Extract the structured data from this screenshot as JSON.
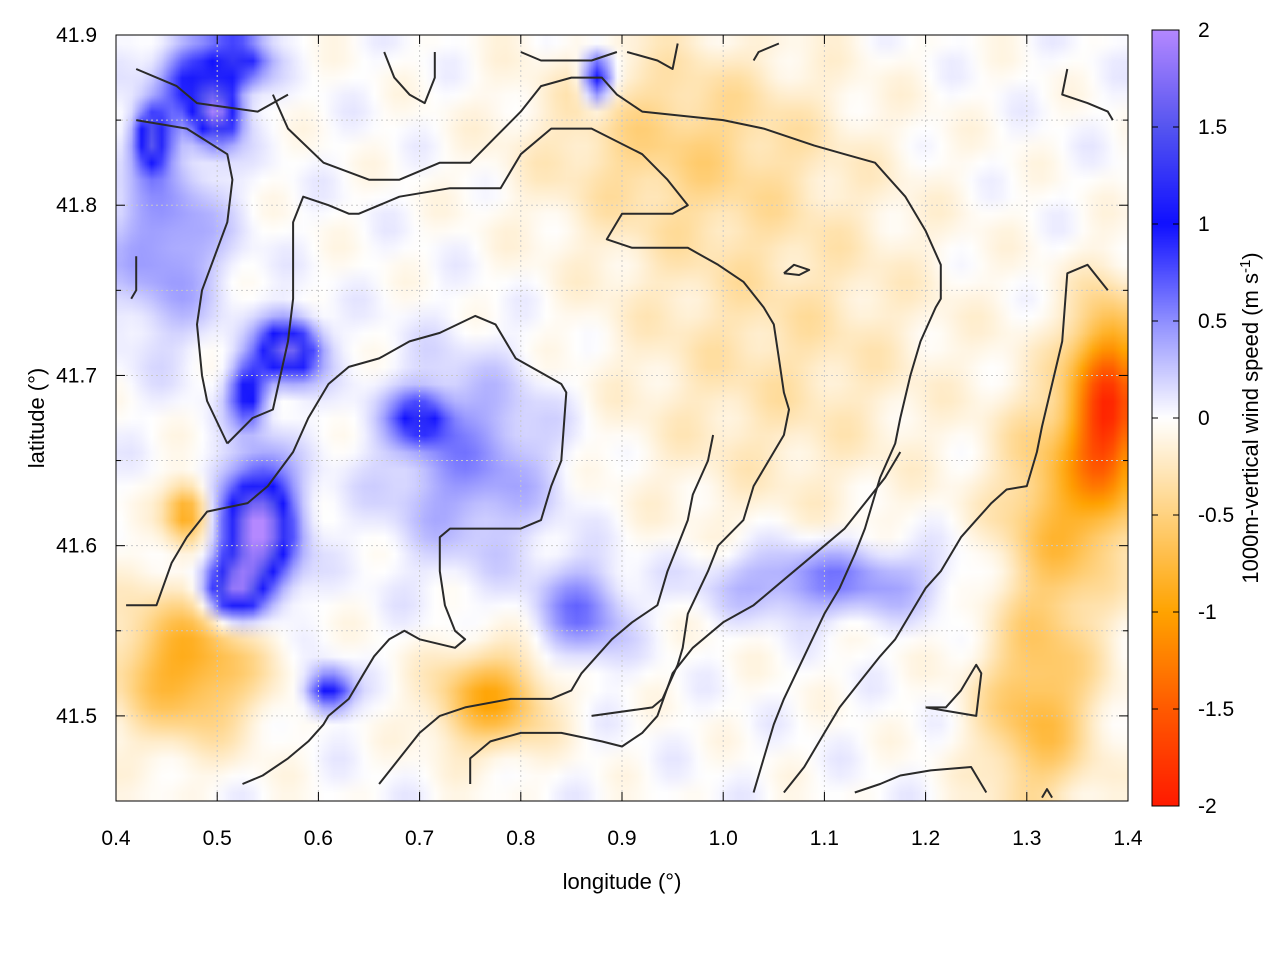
{
  "chart_data": {
    "type": "heatmap",
    "xlabel": "longitude (°)",
    "ylabel": "latitude (°)",
    "xlim": [
      0.4,
      1.4
    ],
    "ylim": [
      41.45,
      41.9
    ],
    "xticks": [
      "0.4",
      "0.5",
      "0.6",
      "0.7",
      "0.8",
      "0.9",
      "1.0",
      "1.1",
      "1.2",
      "1.3",
      "1.4"
    ],
    "yticks": [
      "41.5",
      "41.6",
      "41.7",
      "41.8",
      "41.9"
    ],
    "grid": true,
    "colorbar": {
      "label_main": "1000m-vertical wind speed (m s",
      "label_sup": "-1",
      "label_end": ")",
      "range": [
        -2,
        2
      ],
      "ticks": [
        "2",
        "1.5",
        "1",
        "0.5",
        "0",
        "-0.5",
        "-1",
        "-1.5",
        "-2"
      ],
      "colors": [
        {
          "v": -2.0,
          "c": "#ff1a00"
        },
        {
          "v": -1.5,
          "c": "#ff5a00"
        },
        {
          "v": -1.0,
          "c": "#ffa300"
        },
        {
          "v": -0.5,
          "c": "#ffd27f"
        },
        {
          "v": 0.0,
          "c": "#ffffff"
        },
        {
          "v": 0.5,
          "c": "#8f8fff"
        },
        {
          "v": 1.0,
          "c": "#1010ff"
        },
        {
          "v": 1.5,
          "c": "#5555f0"
        },
        {
          "v": 2.0,
          "c": "#b488ff"
        }
      ]
    },
    "field_features": [
      {
        "lon": 0.5,
        "lat": 41.855,
        "value": 1.8,
        "sx": 0.015,
        "sy": 0.012
      },
      {
        "lon": 0.435,
        "lat": 41.84,
        "value": 1.5,
        "sx": 0.012,
        "sy": 0.012
      },
      {
        "lon": 0.52,
        "lat": 41.885,
        "value": 1.2,
        "sx": 0.02,
        "sy": 0.01
      },
      {
        "lon": 0.47,
        "lat": 41.875,
        "value": 0.9,
        "sx": 0.02,
        "sy": 0.015
      },
      {
        "lon": 0.57,
        "lat": 41.715,
        "value": 1.7,
        "sx": 0.02,
        "sy": 0.012
      },
      {
        "lon": 0.53,
        "lat": 41.69,
        "value": 1.2,
        "sx": 0.012,
        "sy": 0.012
      },
      {
        "lon": 0.54,
        "lat": 41.61,
        "value": 2.0,
        "sx": 0.025,
        "sy": 0.025
      },
      {
        "lon": 0.515,
        "lat": 41.575,
        "value": 1.5,
        "sx": 0.02,
        "sy": 0.012
      },
      {
        "lon": 0.61,
        "lat": 41.515,
        "value": 1.2,
        "sx": 0.015,
        "sy": 0.008
      },
      {
        "lon": 0.875,
        "lat": 41.875,
        "value": 1.2,
        "sx": 0.01,
        "sy": 0.01
      },
      {
        "lon": 0.7,
        "lat": 41.675,
        "value": 0.9,
        "sx": 0.02,
        "sy": 0.01
      },
      {
        "lon": 0.86,
        "lat": 41.56,
        "value": 0.6,
        "sx": 0.03,
        "sy": 0.02
      },
      {
        "lon": 1.1,
        "lat": 41.58,
        "value": 0.6,
        "sx": 0.08,
        "sy": 0.015
      },
      {
        "lon": 0.45,
        "lat": 41.78,
        "value": 0.5,
        "sx": 0.04,
        "sy": 0.04
      },
      {
        "lon": 0.75,
        "lat": 41.65,
        "value": 0.5,
        "sx": 0.06,
        "sy": 0.04
      },
      {
        "lon": 0.47,
        "lat": 41.62,
        "value": -1.0,
        "sx": 0.015,
        "sy": 0.012
      },
      {
        "lon": 0.47,
        "lat": 41.53,
        "value": -0.9,
        "sx": 0.05,
        "sy": 0.03
      },
      {
        "lon": 0.77,
        "lat": 41.51,
        "value": -0.9,
        "sx": 0.04,
        "sy": 0.02
      },
      {
        "lon": 1.38,
        "lat": 41.68,
        "value": -1.7,
        "sx": 0.025,
        "sy": 0.04
      },
      {
        "lon": 1.33,
        "lat": 41.62,
        "value": -0.7,
        "sx": 0.04,
        "sy": 0.05
      },
      {
        "lon": 1.31,
        "lat": 41.5,
        "value": -0.7,
        "sx": 0.04,
        "sy": 0.04
      },
      {
        "lon": 0.95,
        "lat": 41.84,
        "value": -0.4,
        "sx": 0.1,
        "sy": 0.04
      },
      {
        "lon": 1.05,
        "lat": 41.72,
        "value": -0.3,
        "sx": 0.12,
        "sy": 0.08
      }
    ],
    "contours": [
      [
        [
          0.42,
          41.88
        ],
        [
          0.46,
          41.87
        ],
        [
          0.48,
          41.86
        ],
        [
          0.54,
          41.855
        ],
        [
          0.57,
          41.865
        ]
      ],
      [
        [
          0.42,
          41.85
        ],
        [
          0.47,
          41.845
        ],
        [
          0.51,
          41.83
        ],
        [
          0.515,
          41.815
        ],
        [
          0.51,
          41.79
        ],
        [
          0.485,
          41.75
        ],
        [
          0.48,
          41.73
        ],
        [
          0.485,
          41.7
        ],
        [
          0.49,
          41.685
        ],
        [
          0.51,
          41.66
        ]
      ],
      [
        [
          0.42,
          41.77
        ],
        [
          0.42,
          41.75
        ],
        [
          0.415,
          41.745
        ]
      ],
      [
        [
          0.51,
          41.66
        ],
        [
          0.535,
          41.675
        ],
        [
          0.555,
          41.68
        ],
        [
          0.57,
          41.72
        ],
        [
          0.575,
          41.745
        ],
        [
          0.575,
          41.79
        ],
        [
          0.585,
          41.805
        ],
        [
          0.61,
          41.8
        ],
        [
          0.63,
          41.795
        ],
        [
          0.64,
          41.795
        ],
        [
          0.68,
          41.805
        ],
        [
          0.73,
          41.81
        ],
        [
          0.78,
          41.81
        ],
        [
          0.8,
          41.83
        ],
        [
          0.83,
          41.845
        ],
        [
          0.87,
          41.845
        ],
        [
          0.92,
          41.83
        ],
        [
          0.945,
          41.815
        ],
        [
          0.965,
          41.8
        ],
        [
          0.95,
          41.795
        ],
        [
          0.9,
          41.795
        ],
        [
          0.885,
          41.78
        ],
        [
          0.91,
          41.775
        ],
        [
          0.965,
          41.775
        ],
        [
          0.995,
          41.765
        ],
        [
          1.02,
          41.755
        ],
        [
          1.04,
          41.74
        ],
        [
          1.05,
          41.73
        ],
        [
          1.055,
          41.71
        ],
        [
          1.06,
          41.69
        ],
        [
          1.065,
          41.68
        ],
        [
          1.06,
          41.665
        ],
        [
          1.045,
          41.65
        ],
        [
          1.03,
          41.635
        ],
        [
          1.025,
          41.625
        ],
        [
          1.02,
          41.615
        ],
        [
          0.995,
          41.6
        ],
        [
          0.985,
          41.585
        ],
        [
          0.965,
          41.56
        ],
        [
          0.96,
          41.54
        ],
        [
          0.955,
          41.53
        ],
        [
          0.94,
          41.51
        ],
        [
          0.93,
          41.505
        ],
        [
          0.87,
          41.5
        ]
      ],
      [
        [
          0.555,
          41.865
        ],
        [
          0.57,
          41.845
        ],
        [
          0.605,
          41.825
        ],
        [
          0.65,
          41.815
        ],
        [
          0.68,
          41.815
        ],
        [
          0.72,
          41.825
        ],
        [
          0.75,
          41.825
        ],
        [
          0.775,
          41.84
        ],
        [
          0.8,
          41.855
        ],
        [
          0.82,
          41.87
        ],
        [
          0.85,
          41.875
        ],
        [
          0.88,
          41.875
        ],
        [
          0.895,
          41.865
        ],
        [
          0.92,
          41.855
        ],
        [
          1.0,
          41.85
        ],
        [
          1.04,
          41.845
        ],
        [
          1.09,
          41.835
        ],
        [
          1.12,
          41.83
        ],
        [
          1.15,
          41.825
        ],
        [
          1.18,
          41.805
        ],
        [
          1.2,
          41.785
        ],
        [
          1.215,
          41.765
        ],
        [
          1.215,
          41.745
        ],
        [
          1.21,
          41.74
        ],
        [
          1.195,
          41.72
        ],
        [
          1.185,
          41.7
        ],
        [
          1.175,
          41.675
        ],
        [
          1.17,
          41.66
        ],
        [
          1.155,
          41.64
        ],
        [
          1.14,
          41.61
        ],
        [
          1.13,
          41.595
        ],
        [
          1.115,
          41.575
        ],
        [
          1.1,
          41.56
        ],
        [
          1.08,
          41.535
        ],
        [
          1.06,
          41.51
        ],
        [
          1.05,
          41.495
        ],
        [
          1.04,
          41.475
        ],
        [
          1.03,
          41.455
        ]
      ],
      [
        [
          0.665,
          41.89
        ],
        [
          0.675,
          41.875
        ],
        [
          0.69,
          41.865
        ],
        [
          0.705,
          41.86
        ],
        [
          0.715,
          41.875
        ],
        [
          0.715,
          41.89
        ]
      ],
      [
        [
          0.8,
          41.89
        ],
        [
          0.82,
          41.885
        ],
        [
          0.84,
          41.885
        ],
        [
          0.87,
          41.885
        ],
        [
          0.895,
          41.89
        ]
      ],
      [
        [
          0.905,
          41.89
        ],
        [
          0.935,
          41.885
        ],
        [
          0.95,
          41.88
        ],
        [
          0.955,
          41.895
        ]
      ],
      [
        [
          1.03,
          41.885
        ],
        [
          1.035,
          41.89
        ],
        [
          1.055,
          41.895
        ]
      ],
      [
        [
          1.34,
          41.88
        ],
        [
          1.335,
          41.865
        ],
        [
          1.36,
          41.86
        ],
        [
          1.38,
          41.855
        ],
        [
          1.385,
          41.85
        ]
      ],
      [
        [
          1.06,
          41.76
        ],
        [
          1.07,
          41.765
        ],
        [
          1.085,
          41.762
        ],
        [
          1.075,
          41.759
        ],
        [
          1.06,
          41.76
        ]
      ],
      [
        [
          0.41,
          41.565
        ],
        [
          0.44,
          41.565
        ],
        [
          0.455,
          41.59
        ],
        [
          0.47,
          41.605
        ],
        [
          0.49,
          41.62
        ],
        [
          0.53,
          41.625
        ],
        [
          0.55,
          41.635
        ],
        [
          0.575,
          41.655
        ],
        [
          0.59,
          41.675
        ],
        [
          0.61,
          41.695
        ],
        [
          0.63,
          41.705
        ],
        [
          0.66,
          41.71
        ],
        [
          0.69,
          41.72
        ],
        [
          0.72,
          41.725
        ],
        [
          0.755,
          41.735
        ],
        [
          0.775,
          41.73
        ],
        [
          0.795,
          41.71
        ],
        [
          0.84,
          41.695
        ],
        [
          0.845,
          41.69
        ],
        [
          0.84,
          41.65
        ],
        [
          0.83,
          41.635
        ],
        [
          0.82,
          41.615
        ],
        [
          0.8,
          41.61
        ],
        [
          0.76,
          41.61
        ],
        [
          0.73,
          41.61
        ],
        [
          0.72,
          41.605
        ],
        [
          0.72,
          41.585
        ],
        [
          0.725,
          41.565
        ],
        [
          0.735,
          41.55
        ],
        [
          0.745,
          41.545
        ],
        [
          0.735,
          41.54
        ],
        [
          0.7,
          41.545
        ],
        [
          0.685,
          41.55
        ],
        [
          0.67,
          41.545
        ],
        [
          0.655,
          41.535
        ],
        [
          0.645,
          41.525
        ],
        [
          0.63,
          41.51
        ],
        [
          0.61,
          41.5
        ],
        [
          0.605,
          41.495
        ],
        [
          0.59,
          41.485
        ],
        [
          0.57,
          41.475
        ],
        [
          0.545,
          41.465
        ],
        [
          0.525,
          41.46
        ]
      ],
      [
        [
          0.66,
          41.46
        ],
        [
          0.68,
          41.475
        ],
        [
          0.7,
          41.49
        ],
        [
          0.72,
          41.5
        ],
        [
          0.745,
          41.505
        ],
        [
          0.79,
          41.51
        ],
        [
          0.83,
          41.51
        ],
        [
          0.85,
          41.515
        ],
        [
          0.86,
          41.525
        ],
        [
          0.875,
          41.535
        ],
        [
          0.89,
          41.545
        ],
        [
          0.91,
          41.555
        ],
        [
          0.935,
          41.565
        ],
        [
          0.94,
          41.575
        ],
        [
          0.945,
          41.585
        ],
        [
          0.955,
          41.6
        ],
        [
          0.965,
          41.615
        ],
        [
          0.97,
          41.63
        ],
        [
          0.985,
          41.65
        ],
        [
          0.99,
          41.665
        ]
      ],
      [
        [
          0.75,
          41.46
        ],
        [
          0.75,
          41.475
        ],
        [
          0.77,
          41.485
        ],
        [
          0.8,
          41.49
        ],
        [
          0.84,
          41.49
        ],
        [
          0.88,
          41.485
        ],
        [
          0.9,
          41.482
        ],
        [
          0.92,
          41.49
        ],
        [
          0.935,
          41.5
        ],
        [
          0.95,
          41.525
        ],
        [
          0.97,
          41.54
        ],
        [
          1.0,
          41.555
        ],
        [
          1.03,
          41.565
        ],
        [
          1.06,
          41.58
        ],
        [
          1.08,
          41.59
        ],
        [
          1.1,
          41.6
        ],
        [
          1.12,
          41.61
        ],
        [
          1.14,
          41.625
        ],
        [
          1.16,
          41.64
        ],
        [
          1.175,
          41.655
        ]
      ],
      [
        [
          1.13,
          41.455
        ],
        [
          1.155,
          41.46
        ],
        [
          1.175,
          41.465
        ],
        [
          1.205,
          41.468
        ],
        [
          1.245,
          41.47
        ],
        [
          1.26,
          41.455
        ]
      ],
      [
        [
          1.2,
          41.505
        ],
        [
          1.25,
          41.5
        ],
        [
          1.255,
          41.525
        ],
        [
          1.25,
          41.53
        ],
        [
          1.235,
          41.515
        ],
        [
          1.22,
          41.505
        ],
        [
          1.2,
          41.505
        ]
      ],
      [
        [
          1.315,
          41.452
        ],
        [
          1.32,
          41.457
        ],
        [
          1.325,
          41.452
        ]
      ],
      [
        [
          1.38,
          41.75
        ],
        [
          1.36,
          41.765
        ],
        [
          1.34,
          41.76
        ],
        [
          1.335,
          41.72
        ],
        [
          1.325,
          41.695
        ],
        [
          1.315,
          41.67
        ],
        [
          1.31,
          41.655
        ],
        [
          1.3,
          41.635
        ],
        [
          1.28,
          41.633
        ],
        [
          1.265,
          41.625
        ],
        [
          1.25,
          41.615
        ],
        [
          1.235,
          41.605
        ],
        [
          1.225,
          41.595
        ],
        [
          1.215,
          41.585
        ],
        [
          1.2,
          41.575
        ],
        [
          1.185,
          41.56
        ],
        [
          1.17,
          41.545
        ],
        [
          1.155,
          41.535
        ],
        [
          1.135,
          41.52
        ],
        [
          1.115,
          41.505
        ],
        [
          1.1,
          41.49
        ],
        [
          1.08,
          41.47
        ],
        [
          1.06,
          41.455
        ]
      ]
    ]
  }
}
